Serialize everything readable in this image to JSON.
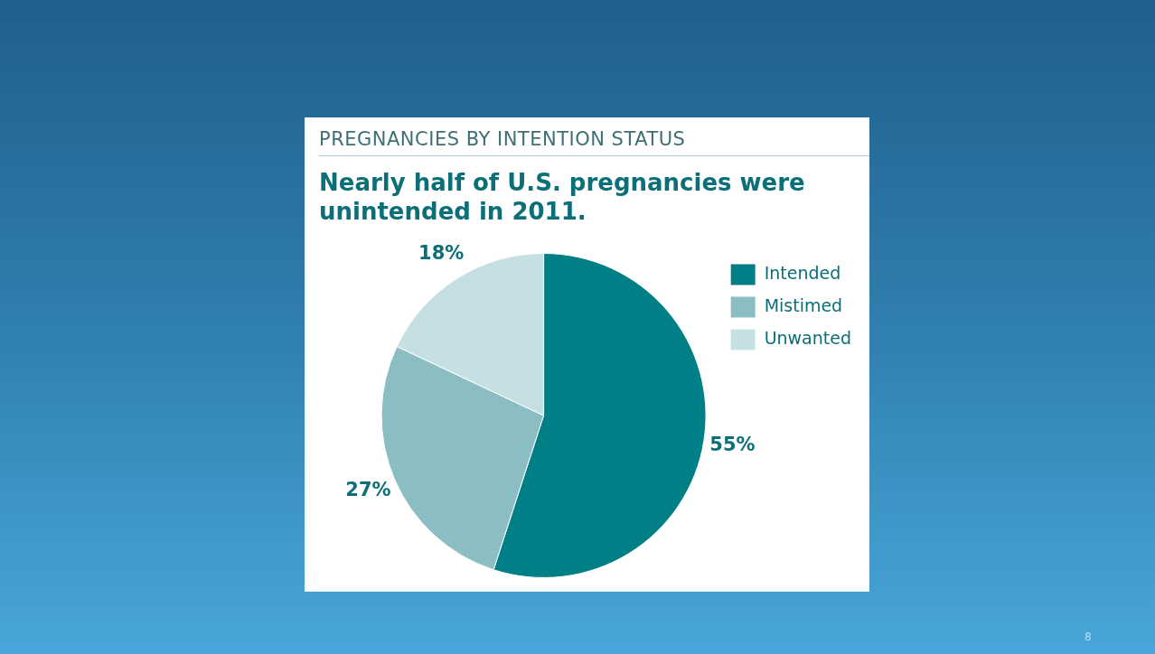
{
  "chart_data": {
    "type": "pie",
    "title": "PREGNANCIES BY INTENTION STATUS",
    "subtitle": "Nearly half of U.S. pregnancies were unintended in 2011.",
    "categories": [
      "Intended",
      "Mistimed",
      "Unwanted"
    ],
    "values": [
      55,
      27,
      18
    ],
    "colors": [
      "#007f86",
      "#8bbec3",
      "#c5dfe2"
    ],
    "value_labels": [
      "55%",
      "27%",
      "18%"
    ],
    "legend": "right",
    "annotations": [
      "8"
    ]
  }
}
